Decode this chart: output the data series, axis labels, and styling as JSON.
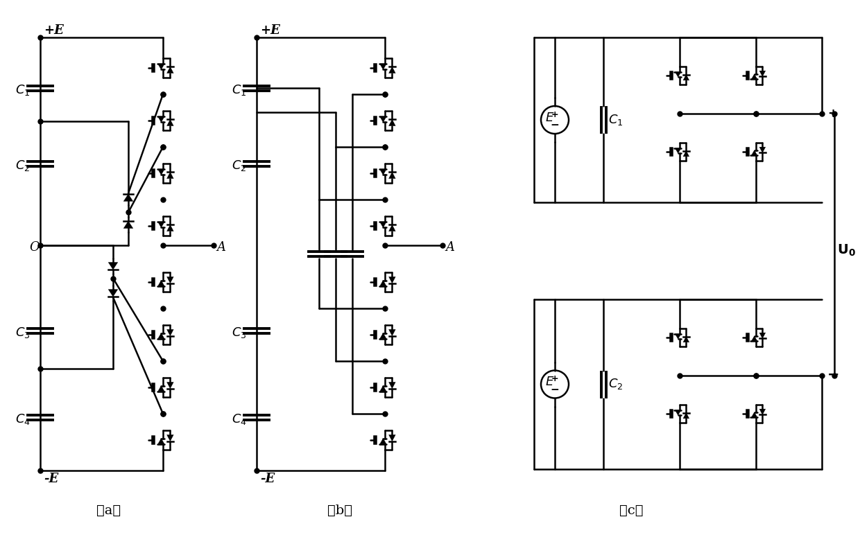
{
  "fig_width": 12.4,
  "fig_height": 7.72,
  "bg_color": "#ffffff",
  "lc": "black",
  "lw": 1.8,
  "fs": 13,
  "captions": [
    "（a）",
    "（b）",
    "（c）"
  ]
}
